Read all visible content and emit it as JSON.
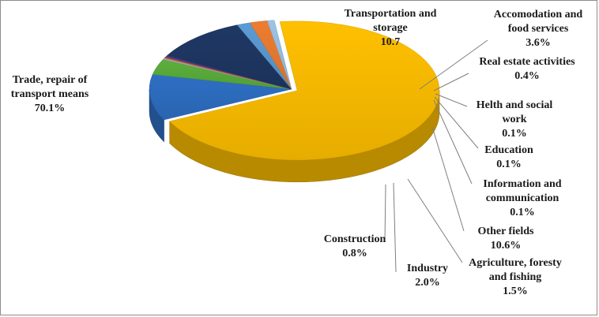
{
  "chart_data": {
    "type": "pie",
    "style": "3d-exploded",
    "title": "",
    "slices": [
      {
        "name": "Trade, repair of transport means",
        "value": 70.1,
        "label_lines": [
          "Trade, repair of",
          "transport means",
          "70.1%"
        ],
        "color": "#FFC000"
      },
      {
        "name": "Transportation and storage",
        "value": 10.7,
        "label_lines": [
          "Transportation and",
          "storage",
          "10.7"
        ],
        "color": "#2E6FC4"
      },
      {
        "name": "Accomodation and food services",
        "value": 3.6,
        "label_lines": [
          "Accomodation and",
          "food services",
          "3.6%"
        ],
        "color": "#5BAF3C"
      },
      {
        "name": "Real estate activities",
        "value": 0.4,
        "label_lines": [
          "Real estate activities",
          "0.4%"
        ],
        "color": "#A5A5A5"
      },
      {
        "name": "Helth and social work",
        "value": 0.1,
        "label_lines": [
          "Helth and social",
          "work",
          "0.1%"
        ],
        "color": "#C55A11"
      },
      {
        "name": "Education",
        "value": 0.1,
        "label_lines": [
          "Education",
          "0.1%"
        ],
        "color": "#7030A0"
      },
      {
        "name": "Information and communication",
        "value": 0.1,
        "label_lines": [
          "Information and",
          "communication",
          "0.1%"
        ],
        "color": "#264478"
      },
      {
        "name": "Other fields",
        "value": 10.6,
        "label_lines": [
          "Other fields",
          "10.6%"
        ],
        "color": "#1F3864"
      },
      {
        "name": "Agriculture, foresty and fishing",
        "value": 1.5,
        "label_lines": [
          "Agriculture, foresty",
          "and fishing",
          "1.5%"
        ],
        "color": "#5B9BD5"
      },
      {
        "name": "Industry",
        "value": 2.0,
        "label_lines": [
          "Industry",
          "2.0%"
        ],
        "color": "#ED7D31"
      },
      {
        "name": "Construction",
        "value": 0.8,
        "label_lines": [
          "Construction",
          "0.8%"
        ],
        "color": "#9DC3E6"
      }
    ]
  }
}
